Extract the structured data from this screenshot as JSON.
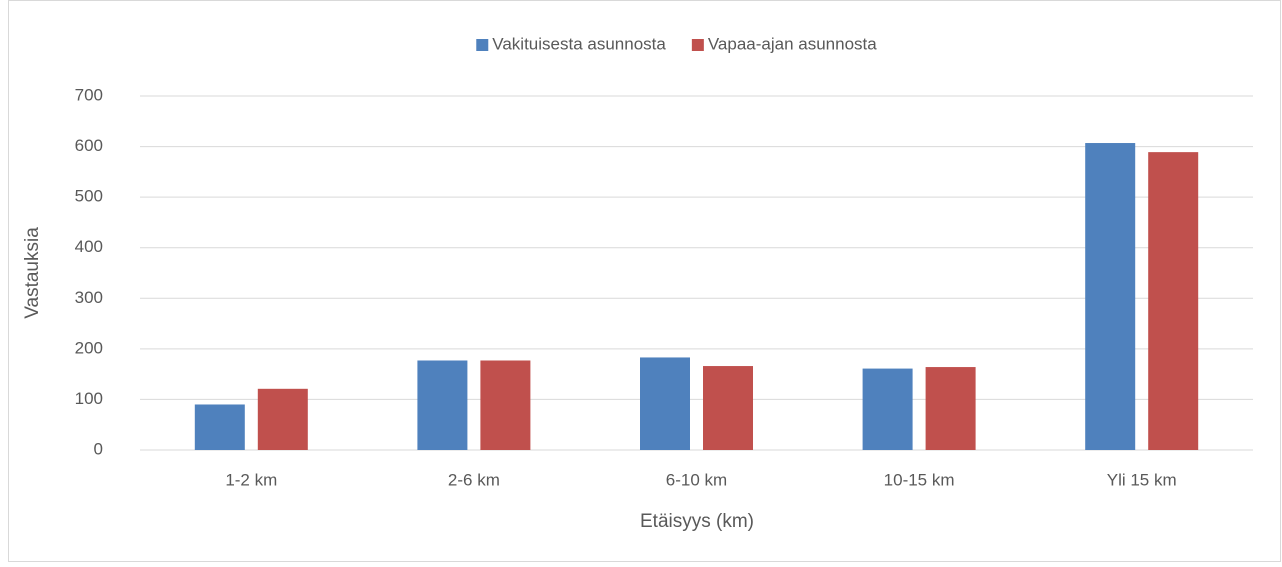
{
  "chart_data": {
    "type": "bar",
    "xlabel": "Etäisyys (km)",
    "ylabel": "Vastauksia",
    "categories": [
      "1-2 km",
      "2-6 km",
      "6-10 km",
      "10-15 km",
      "Yli 15 km"
    ],
    "series": [
      {
        "name": "Vakituisesta asunnosta",
        "color": "#4f81bd",
        "values": [
          90,
          177,
          183,
          161,
          607
        ]
      },
      {
        "name": "Vapaa-ajan asunnosta",
        "color": "#c0504d",
        "values": [
          121,
          177,
          166,
          164,
          589
        ]
      }
    ],
    "ylim": [
      0,
      700
    ],
    "yticks": [
      0,
      100,
      200,
      300,
      400,
      500,
      600,
      700
    ],
    "grid": true,
    "legend": "top"
  }
}
